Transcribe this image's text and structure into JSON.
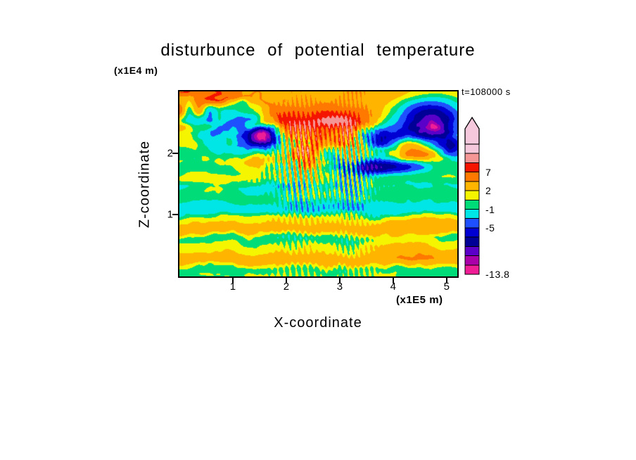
{
  "title": "disturbunce of potential temperature",
  "time_label": "t=108000 s",
  "x_axis": {
    "label": "X-coordinate",
    "unit": "(x1E5 m)",
    "ticks": [
      1,
      2,
      3,
      4,
      5
    ],
    "range": [
      0,
      5.2
    ]
  },
  "y_axis": {
    "label": "Z-coordinate",
    "unit": "(x1E4 m)",
    "ticks": [
      1,
      2
    ],
    "range": [
      0,
      3.0
    ]
  },
  "colorbar": {
    "labels": [
      {
        "text": "7",
        "boundary_index": 3
      },
      {
        "text": "2",
        "boundary_index": 5
      },
      {
        "text": "-1",
        "boundary_index": 7
      },
      {
        "text": "-5",
        "boundary_index": 9
      },
      {
        "text": "-13.8",
        "boundary_index": 14
      }
    ],
    "arrow_color": "#f5c8dc",
    "outline_color": "#000000"
  },
  "chart_data": {
    "type": "heatmap",
    "title": "disturbunce of potential temperature",
    "xlabel": "X-coordinate (x1E5 m)",
    "ylabel": "Z-coordinate (x1E4 m)",
    "time": "t=108000 s",
    "xlim": [
      0,
      5.2
    ],
    "ylim": [
      0,
      3.0
    ],
    "min_value": -13.8,
    "labeled_levels": [
      7,
      2,
      -1,
      -5,
      -13.8
    ],
    "levels_low_to_high": [
      -13.8,
      -12.5,
      -11,
      -9,
      -7,
      -5,
      -3,
      -1,
      0.5,
      2,
      4.5,
      7,
      9,
      11,
      13.8
    ],
    "colors_low_to_high": [
      "#f01e96",
      "#aa00aa",
      "#5a00c8",
      "#000096",
      "#0000d2",
      "#1e50ff",
      "#00e6e6",
      "#00dc78",
      "#f5f500",
      "#ffb400",
      "#ff7800",
      "#f51400",
      "#f59696",
      "#f5c8dc"
    ],
    "legend_position": "right-colorbar-with-overflow-arrow",
    "grid": false,
    "description": "Filled-contour cross-section of potential-temperature disturbance at t=108000 s: yellow/orange horizontal bands below z=1E4 m, a green layer with a cyan band near z=1.1E4 m, fine vertical plume striations near x=2.25E5 m and x=3.2E5 m, a turbulent wave layer with orange bands and dark-blue blobs between z=1.7E4 and 2.4E4 m, and an orange top band with deep navy pockets (strongest near the top-right).",
    "field_synthesis": {
      "seed": 7,
      "plumes": [
        {
          "x": 2.25,
          "w": 0.3,
          "f": 55
        },
        {
          "x": 3.2,
          "w": 0.26,
          "f": 62
        }
      ],
      "features": [
        {
          "x": 0.95,
          "z": 2.0,
          "a": -8,
          "sx": 0.3,
          "sz": 0.15
        },
        {
          "x": 1.45,
          "z": 2.25,
          "a": -7,
          "sx": 0.28,
          "sz": 0.13
        },
        {
          "x": 0.55,
          "z": 2.35,
          "a": -6,
          "sx": 0.22,
          "sz": 0.12
        },
        {
          "x": 1.6,
          "z": 2.3,
          "a": -9,
          "sx": 0.2,
          "sz": 0.12
        },
        {
          "x": 4.7,
          "z": 2.55,
          "a": -13,
          "sx": 0.5,
          "sz": 0.25
        },
        {
          "x": 5.1,
          "z": 2.05,
          "a": -7,
          "sx": 0.22,
          "sz": 0.12
        },
        {
          "x": 3.75,
          "z": 2.3,
          "a": -8,
          "sx": 0.28,
          "sz": 0.14
        },
        {
          "x": 4.15,
          "z": 1.8,
          "a": -8,
          "sx": 0.45,
          "sz": 0.09
        },
        {
          "x": 3.5,
          "z": 1.75,
          "a": -6,
          "sx": 0.3,
          "sz": 0.08
        },
        {
          "x": 2.8,
          "z": 2.0,
          "a": -5,
          "sx": 0.18,
          "sz": 0.1
        },
        {
          "x": 1.85,
          "z": 2.5,
          "a": 5,
          "sx": 0.45,
          "sz": 0.18
        },
        {
          "x": 3.05,
          "z": 2.42,
          "a": 7,
          "sx": 0.4,
          "sz": 0.18
        },
        {
          "x": 2.35,
          "z": 2.1,
          "a": 6,
          "sx": 0.28,
          "sz": 0.22
        },
        {
          "x": 1.1,
          "z": 1.9,
          "a": 3.5,
          "sx": 0.5,
          "sz": 0.12
        },
        {
          "x": 4.6,
          "z": 1.95,
          "a": 4.5,
          "sx": 0.55,
          "sz": 0.14
        },
        {
          "x": 0.45,
          "z": 2.85,
          "a": 4,
          "sx": 0.5,
          "sz": 0.25
        },
        {
          "x": 0.7,
          "z": 1.5,
          "a": 1.8,
          "sx": 0.5,
          "sz": 0.1
        },
        {
          "x": 2.6,
          "z": 1.15,
          "a": -1.0,
          "sx": 2.0,
          "sz": 0.14
        },
        {
          "x": 4.3,
          "z": 0.55,
          "a": 1.5,
          "sx": 0.6,
          "sz": 0.2
        }
      ]
    }
  }
}
